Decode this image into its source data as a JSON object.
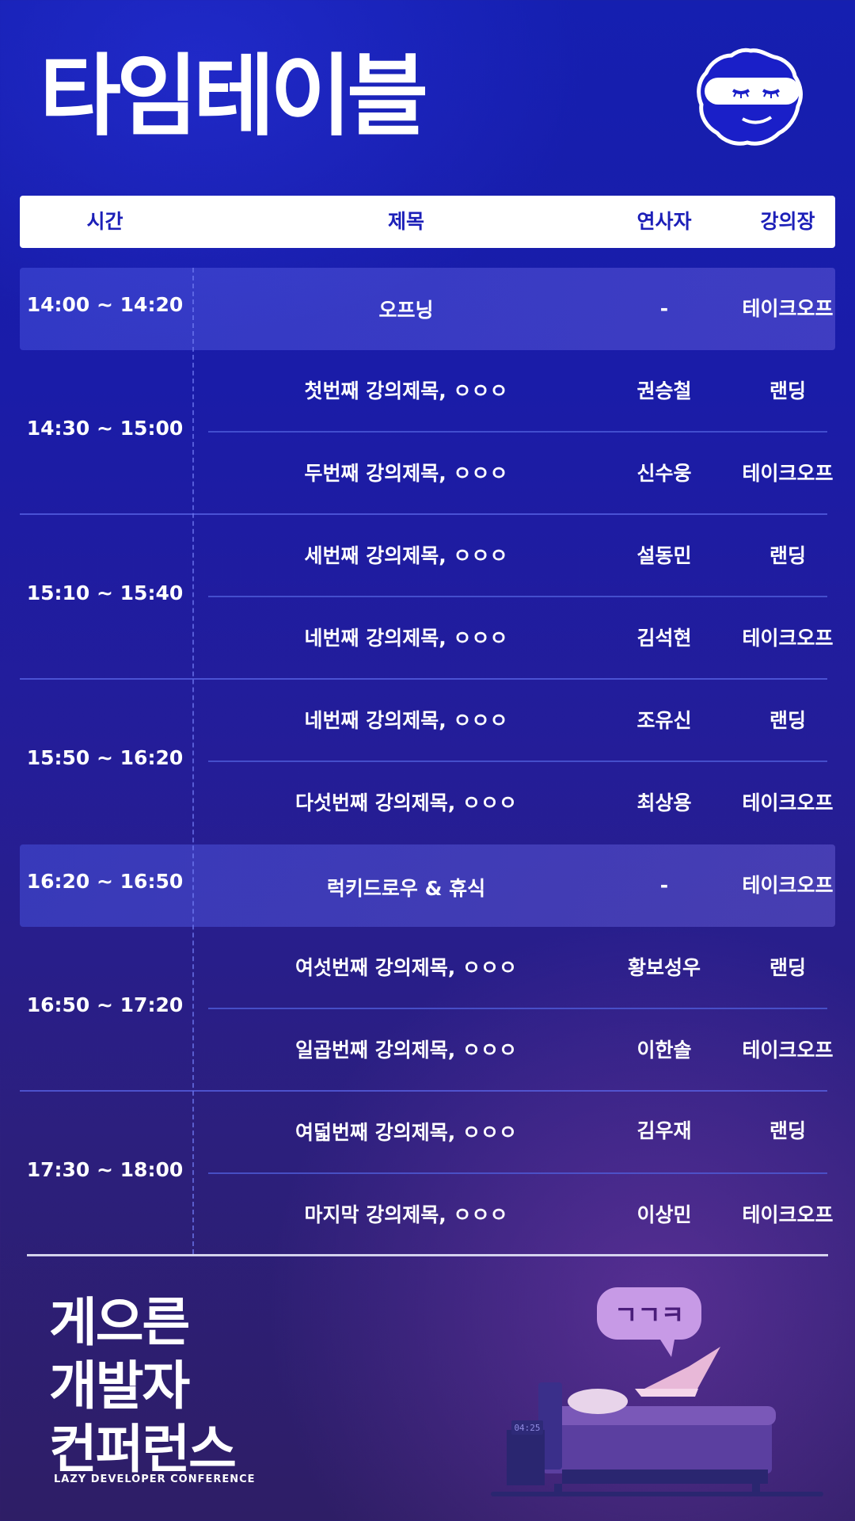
{
  "page_title": "타임테이블",
  "columns": {
    "time": "시간",
    "title": "제목",
    "speaker": "연사자",
    "room": "강의장"
  },
  "slots": [
    {
      "time": "14:00 ~ 14:20",
      "highlight": true,
      "sessions": [
        {
          "title": "오프닝",
          "speaker": "-",
          "room": "테이크오프"
        }
      ]
    },
    {
      "time": "14:30 ~ 15:00",
      "highlight": false,
      "sessions": [
        {
          "title": "첫번째 강의제목, ㅇㅇㅇ",
          "speaker": "권승철",
          "room": "랜딩"
        },
        {
          "title": "두번째 강의제목, ㅇㅇㅇ",
          "speaker": "신수웅",
          "room": "테이크오프"
        }
      ]
    },
    {
      "time": "15:10 ~ 15:40",
      "highlight": false,
      "sessions": [
        {
          "title": "세번째 강의제목, ㅇㅇㅇ",
          "speaker": "설동민",
          "room": "랜딩"
        },
        {
          "title": "네번째 강의제목, ㅇㅇㅇ",
          "speaker": "김석현",
          "room": "테이크오프"
        }
      ]
    },
    {
      "time": "15:50 ~ 16:20",
      "highlight": false,
      "sessions": [
        {
          "title": "네번째 강의제목, ㅇㅇㅇ",
          "speaker": "조유신",
          "room": "랜딩"
        },
        {
          "title": "다섯번째 강의제목, ㅇㅇㅇ",
          "speaker": "최상용",
          "room": "테이크오프"
        }
      ]
    },
    {
      "time": "16:20 ~ 16:50",
      "highlight": true,
      "sessions": [
        {
          "title": "럭키드로우 & 휴식",
          "speaker": "-",
          "room": "테이크오프"
        }
      ]
    },
    {
      "time": "16:50 ~ 17:20",
      "highlight": false,
      "sessions": [
        {
          "title": "여섯번째 강의제목, ㅇㅇㅇ",
          "speaker": "황보성우",
          "room": "랜딩"
        },
        {
          "title": "일곱번째 강의제목, ㅇㅇㅇ",
          "speaker": "이한솔",
          "room": "테이크오프"
        }
      ]
    },
    {
      "time": "17:30 ~ 18:00",
      "highlight": false,
      "sessions": [
        {
          "title": "여덟번째 강의제목, ㅇㅇㅇ",
          "speaker": "김우재",
          "room": "랜딩"
        },
        {
          "title": "마지막 강의제목, ㅇㅇㅇ",
          "speaker": "이상민",
          "room": "테이크오프"
        }
      ]
    }
  ],
  "logo": {
    "line1": "게으른",
    "line2": "개발자",
    "line3": "컨퍼런스",
    "subtitle": "LAZY DEVELOPER CONFERENCE"
  },
  "bubble_text": "ㄱㄱㅋ",
  "clock_text": "04:25",
  "colors": {
    "accent": "#1c1fb8",
    "mascot": "#1a1fc8",
    "bubble": "#c79ae6"
  }
}
